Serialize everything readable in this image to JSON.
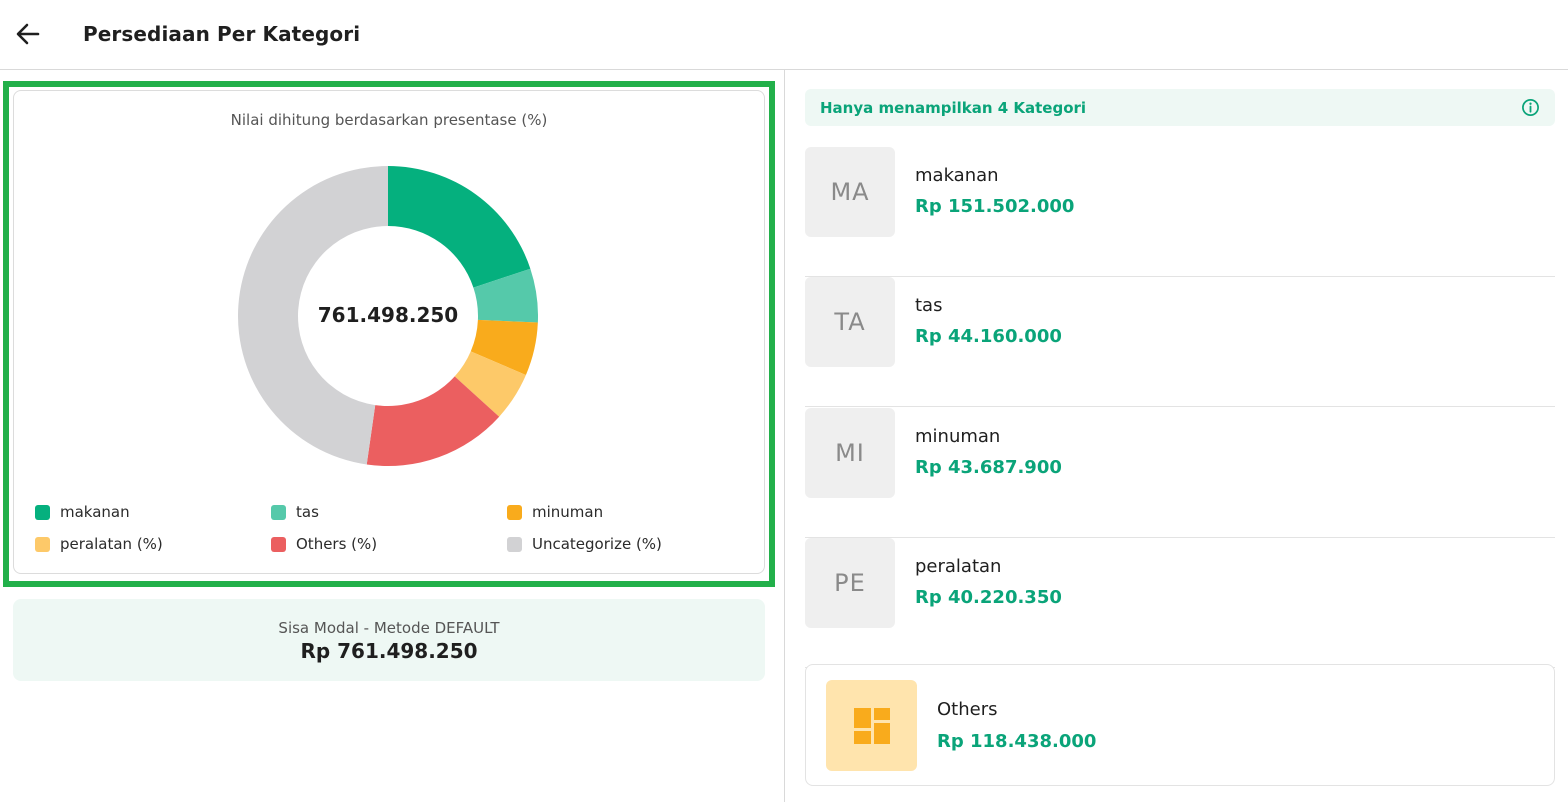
{
  "header": {
    "title": "Persediaan Per Kategori",
    "back_icon": "arrow-left-icon"
  },
  "chart": {
    "caption": "Nilai dihitung berdasarkan presentase (%)",
    "center_value": "761.498.250"
  },
  "chart_data": {
    "type": "pie",
    "center_label": "761.498.250",
    "categories": [
      "makanan",
      "tas",
      "minuman",
      "peralatan (%)",
      "Others (%)",
      "Uncategorize (%)"
    ],
    "values": [
      151502000,
      44160000,
      43687900,
      40220350,
      118438000,
      363490000
    ],
    "colors": [
      "#05b07e",
      "#55c9aa",
      "#f9ab1c",
      "#fdc969",
      "#eb5f60",
      "#d2d2d4"
    ],
    "legend": [
      "makanan",
      "tas",
      "minuman",
      "peralatan (%)",
      "Others (%)",
      "Uncategorize (%)"
    ],
    "legend_position": "bottom"
  },
  "modal": {
    "label": "Sisa Modal - Metode DEFAULT",
    "value": "Rp 761.498.250"
  },
  "info_banner": {
    "text": "Hanya menampilkan 4 Kategori",
    "icon": "info-icon"
  },
  "categories": [
    {
      "initials": "MA",
      "name": "makanan",
      "value": "Rp 151.502.000"
    },
    {
      "initials": "TA",
      "name": "tas",
      "value": "Rp 44.160.000"
    },
    {
      "initials": "MI",
      "name": "minuman",
      "value": "Rp 43.687.900"
    },
    {
      "initials": "PE",
      "name": "peralatan",
      "value": "Rp 40.220.350"
    }
  ],
  "others": {
    "name": "Others",
    "value": "Rp 118.438.000",
    "icon": "dashboard-grid-icon"
  },
  "colors": {
    "accent_green": "#0aa479",
    "highlight_border": "#22b04a",
    "light_green_bg": "#eef8f4",
    "others_icon_bg": "#ffe4ad",
    "others_icon_fg": "#f9ab1c"
  }
}
